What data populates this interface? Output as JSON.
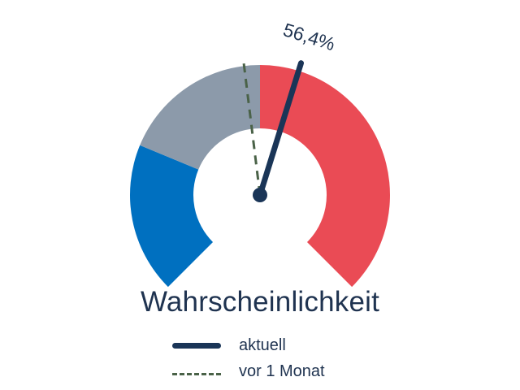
{
  "chart_data": {
    "type": "gauge",
    "title": "Wahrscheinlichkeit",
    "range": [
      0,
      100
    ],
    "segments": [
      {
        "from": 0,
        "to": 25,
        "color": "#0070c0"
      },
      {
        "from": 25,
        "to": 50,
        "color": "#8c9aaa"
      },
      {
        "from": 50,
        "to": 100,
        "color": "#ea4b55"
      }
    ],
    "needles": [
      {
        "name": "aktuell",
        "value": 56.4,
        "label": "56,4%",
        "style": "solid",
        "color": "#1a3557"
      },
      {
        "name": "vor 1 Monat",
        "value": 47.4,
        "style": "dashed",
        "color": "#4a6248"
      }
    ],
    "legend": "bottom",
    "legend_items": [
      {
        "label": "aktuell",
        "style": "solid"
      },
      {
        "label": "vor 1 Monat",
        "style": "dashed"
      }
    ]
  }
}
